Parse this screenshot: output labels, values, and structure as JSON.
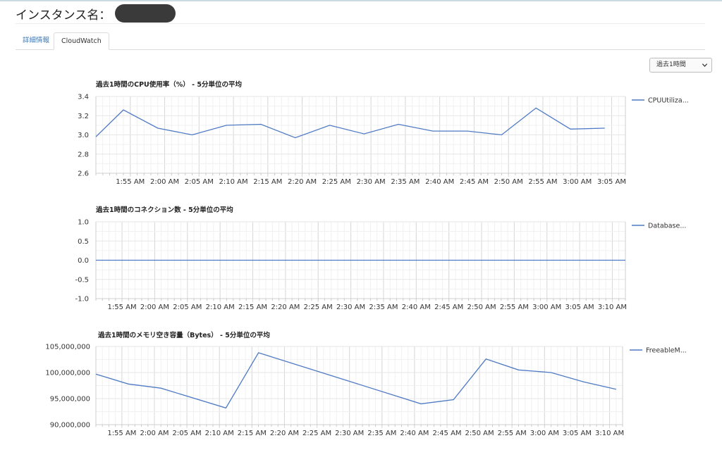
{
  "header": {
    "title_prefix": "インスタンス名："
  },
  "tabs": [
    {
      "label": "詳細情報",
      "active": false
    },
    {
      "label": "CloudWatch",
      "active": true
    }
  ],
  "range_select": {
    "value": "過去1時間",
    "icon": "chevron-down-icon"
  },
  "colors": {
    "line": "#4f7ac4",
    "grid": "#e6e6e6",
    "tab_link": "#3c78b4"
  },
  "chart_data": [
    {
      "type": "line",
      "title": "過去1時間のCPU使用率（%） - 5分単位の平均",
      "legend": "CPUUtiliza...",
      "legend_position": "right",
      "grid": true,
      "ylim": [
        2.6,
        3.4
      ],
      "y_ticks": [
        "3.4",
        "3.2",
        "3.0",
        "2.8",
        "2.6"
      ],
      "x_tick_labels": [
        "1:55 AM",
        "2:00 AM",
        "2:05 AM",
        "2:10 AM",
        "2:15 AM",
        "2:20 AM",
        "2:25 AM",
        "2:30 AM",
        "2:35 AM",
        "2:40 AM",
        "2:45 AM",
        "2:50 AM",
        "2:55 AM",
        "3:00 AM",
        "3:05 AM"
      ],
      "x_start": "1:50 AM",
      "x_end": "3:07 AM",
      "series": [
        {
          "x": [
            "1:50 AM",
            "1:54 AM",
            "1:59 AM",
            "2:04 AM",
            "2:09 AM",
            "2:14 AM",
            "2:19 AM",
            "2:24 AM",
            "2:29 AM",
            "2:34 AM",
            "2:39 AM",
            "2:44 AM",
            "2:49 AM",
            "2:54 AM",
            "2:59 AM",
            "3:04 AM"
          ],
          "values": [
            2.98,
            3.26,
            3.07,
            3.0,
            3.1,
            3.11,
            2.97,
            3.1,
            3.01,
            3.11,
            3.04,
            3.04,
            3.0,
            3.28,
            3.06,
            3.07
          ]
        }
      ]
    },
    {
      "type": "line",
      "title": "過去1時間のコネクション数 - 5分単位の平均",
      "legend": "Database...",
      "legend_position": "right",
      "grid": true,
      "ylim": [
        -1.0,
        1.0
      ],
      "y_ticks": [
        "1.0",
        "0.5",
        "0.0",
        "-0.5",
        "-1.0"
      ],
      "x_tick_labels": [
        "1:55 AM",
        "2:00 AM",
        "2:05 AM",
        "2:10 AM",
        "2:15 AM",
        "2:20 AM",
        "2:25 AM",
        "2:30 AM",
        "2:35 AM",
        "2:40 AM",
        "2:45 AM",
        "2:50 AM",
        "2:55 AM",
        "3:00 AM",
        "3:05 AM",
        "3:10 AM"
      ],
      "x_start": "1:51 AM",
      "x_end": "3:12 AM",
      "series": [
        {
          "x": [
            "1:51 AM",
            "3:12 AM"
          ],
          "values": [
            0.0,
            0.0
          ]
        }
      ]
    },
    {
      "type": "line",
      "title": "過去1時間のメモリ空き容量（Bytes） - 5分単位の平均",
      "legend": "FreeableM...",
      "legend_position": "right",
      "grid": true,
      "ylim": [
        90000000,
        105000000
      ],
      "y_ticks": [
        "105,000,000",
        "100,000,000",
        "95,000,000",
        "90,000,000"
      ],
      "x_tick_labels": [
        "1:55 AM",
        "2:00 AM",
        "2:05 AM",
        "2:10 AM",
        "2:15 AM",
        "2:20 AM",
        "2:25 AM",
        "2:30 AM",
        "2:35 AM",
        "2:40 AM",
        "2:45 AM",
        "2:50 AM",
        "2:55 AM",
        "3:00 AM",
        "3:05 AM",
        "3:10 AM"
      ],
      "x_start": "1:51 AM",
      "x_end": "3:12 AM",
      "series": [
        {
          "x": [
            "1:51 AM",
            "1:56 AM",
            "2:01 AM",
            "2:11 AM",
            "2:16 AM",
            "2:41 AM",
            "2:46 AM",
            "2:51 AM",
            "2:56 AM",
            "3:01 AM",
            "3:06 AM",
            "3:11 AM"
          ],
          "values": [
            99700000,
            97800000,
            97000000,
            93200000,
            103800000,
            94000000,
            94800000,
            102600000,
            100500000,
            100000000,
            98200000,
            96800000
          ]
        }
      ]
    }
  ]
}
